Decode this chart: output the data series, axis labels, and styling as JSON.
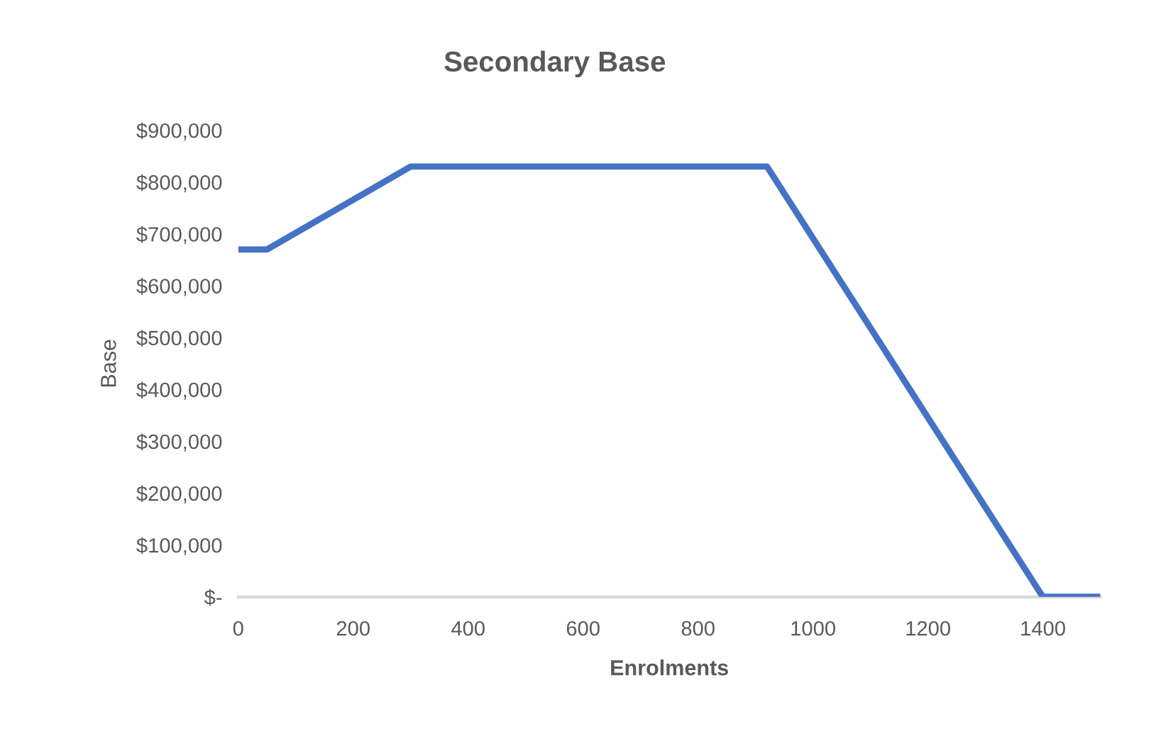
{
  "chart_data": {
    "type": "line",
    "title": "Secondary Base",
    "xlabel": "Enrolments",
    "ylabel": "Base",
    "x": [
      0,
      50,
      300,
      920,
      1400,
      1500
    ],
    "series": [
      {
        "color": "#4472c4",
        "values": [
          670000,
          670000,
          830000,
          830000,
          0,
          0
        ]
      }
    ],
    "xlim": [
      0,
      1500
    ],
    "xticks": [
      0,
      200,
      400,
      600,
      800,
      1000,
      1200,
      1400
    ],
    "ylim": [
      0,
      900000
    ],
    "yticks": [
      {
        "value": 0,
        "label": "$-"
      },
      {
        "value": 100000,
        "label": "$100,000"
      },
      {
        "value": 200000,
        "label": "$200,000"
      },
      {
        "value": 300000,
        "label": "$300,000"
      },
      {
        "value": 400000,
        "label": "$400,000"
      },
      {
        "value": 500000,
        "label": "$500,000"
      },
      {
        "value": 600000,
        "label": "$600,000"
      },
      {
        "value": 700000,
        "label": "$700,000"
      },
      {
        "value": 800000,
        "label": "$800,000"
      },
      {
        "value": 900000,
        "label": "$900,000"
      }
    ],
    "line_style": "solid"
  }
}
